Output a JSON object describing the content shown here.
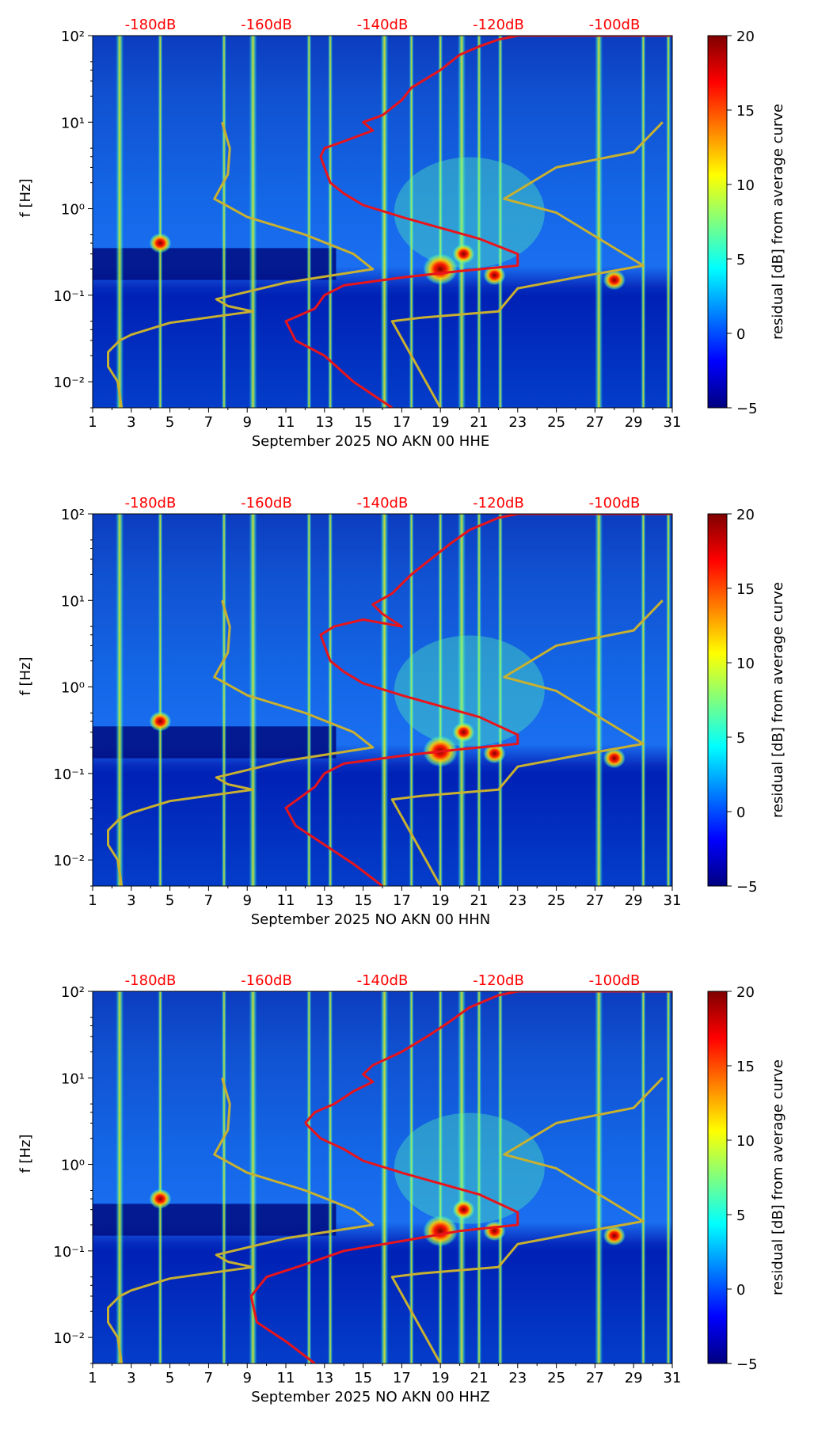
{
  "figure": {
    "colorbar": {
      "label": "residual [dB] from average curve",
      "ticks": [
        "20",
        "15",
        "10",
        "5",
        "0",
        "−5"
      ],
      "range": [
        -5,
        20
      ],
      "colormap": [
        "#00007f",
        "#0000ff",
        "#007fff",
        "#00ffff",
        "#7fff7f",
        "#ffff00",
        "#ff7f00",
        "#ff0000",
        "#7f0000"
      ]
    },
    "top_axis_labels": [
      "-180dB",
      "-160dB",
      "-140dB",
      "-120dB",
      "-100dB"
    ],
    "top_axis_color": "#ff0000"
  },
  "chart_data": [
    {
      "type": "heatmap",
      "title": "",
      "xlabel": "September 2025 NO AKN 00 HHE",
      "ylabel": "f [Hz]",
      "x_ticks": [
        "1",
        "3",
        "5",
        "7",
        "9",
        "11",
        "13",
        "15",
        "17",
        "19",
        "21",
        "23",
        "25",
        "27",
        "29",
        "31"
      ],
      "y_ticks": [
        "10²",
        "10¹",
        "10⁰",
        "10⁻¹",
        "10⁻²"
      ],
      "xlim": [
        1,
        31
      ],
      "ylim": [
        0.005,
        100
      ],
      "y_scale": "log",
      "top_axis_db": [
        -180,
        -160,
        -140,
        -120,
        -100
      ],
      "hotspots_day_freq": [
        [
          19.0,
          0.2
        ],
        [
          21.8,
          0.17
        ],
        [
          28.0,
          0.15
        ],
        [
          20.2,
          0.3
        ],
        [
          4.5,
          0.4
        ]
      ],
      "vertical_bands_day": [
        2.4,
        4.5,
        7.8,
        9.3,
        12.2,
        13.3,
        16.1,
        17.5,
        19.0,
        20.1,
        21.0,
        22.1,
        27.2,
        29.5,
        30.8
      ],
      "series": [
        {
          "name": "red",
          "points": [
            [
              13,
              3
            ],
            [
              12.8,
              4
            ],
            [
              13,
              5
            ],
            [
              14,
              6
            ],
            [
              15.5,
              8
            ],
            [
              15,
              10
            ],
            [
              16,
              12
            ],
            [
              17,
              18
            ],
            [
              17.5,
              25
            ],
            [
              19,
              40
            ],
            [
              20,
              60
            ],
            [
              21,
              75
            ],
            [
              22,
              90
            ],
            [
              23,
              100
            ],
            [
              31,
              100
            ]
          ]
        },
        {
          "name": "red",
          "points": [
            [
              13,
              3
            ],
            [
              13.3,
              2
            ],
            [
              14,
              1.5
            ],
            [
              15,
              1.1
            ],
            [
              17,
              0.8
            ],
            [
              19,
              0.6
            ],
            [
              21,
              0.45
            ],
            [
              23,
              0.3
            ],
            [
              23,
              0.22
            ],
            [
              20,
              0.19
            ],
            [
              17,
              0.16
            ],
            [
              14,
              0.13
            ],
            [
              13,
              0.1
            ],
            [
              12.5,
              0.07
            ],
            [
              11,
              0.05
            ],
            [
              11.5,
              0.03
            ],
            [
              13,
              0.02
            ],
            [
              14.5,
              0.01
            ],
            [
              16.5,
              0.005
            ]
          ]
        },
        {
          "name": "yellow",
          "points": [
            [
              7.7,
              10
            ],
            [
              8.1,
              5
            ],
            [
              8,
              2.5
            ],
            [
              7.3,
              1.3
            ],
            [
              9,
              0.8
            ],
            [
              12,
              0.5
            ],
            [
              14.5,
              0.3
            ],
            [
              15.5,
              0.2
            ],
            [
              11,
              0.14
            ],
            [
              7.4,
              0.09
            ],
            [
              8,
              0.075
            ],
            [
              9.3,
              0.065
            ],
            [
              5,
              0.048
            ],
            [
              3,
              0.035
            ],
            [
              2.4,
              0.03
            ],
            [
              1.8,
              0.022
            ],
            [
              1.8,
              0.015
            ],
            [
              2.3,
              0.01
            ],
            [
              2.5,
              0.005
            ]
          ]
        },
        {
          "name": "yellow",
          "points": [
            [
              30.5,
              10
            ],
            [
              29,
              4.5
            ],
            [
              25,
              3
            ],
            [
              22.3,
              1.3
            ],
            [
              25,
              0.9
            ],
            [
              29.5,
              0.22
            ],
            [
              26,
              0.16
            ],
            [
              23,
              0.12
            ],
            [
              22,
              0.065
            ],
            [
              18,
              0.055
            ],
            [
              16.5,
              0.05
            ],
            [
              19,
              0.005
            ]
          ]
        }
      ]
    },
    {
      "type": "heatmap",
      "title": "",
      "xlabel": "September 2025 NO AKN 00 HHN",
      "ylabel": "f [Hz]",
      "x_ticks": [
        "1",
        "3",
        "5",
        "7",
        "9",
        "11",
        "13",
        "15",
        "17",
        "19",
        "21",
        "23",
        "25",
        "27",
        "29",
        "31"
      ],
      "y_ticks": [
        "10²",
        "10¹",
        "10⁰",
        "10⁻¹",
        "10⁻²"
      ],
      "xlim": [
        1,
        31
      ],
      "ylim": [
        0.005,
        100
      ],
      "y_scale": "log",
      "top_axis_db": [
        -180,
        -160,
        -140,
        -120,
        -100
      ],
      "hotspots_day_freq": [
        [
          19.0,
          0.18
        ],
        [
          21.8,
          0.17
        ],
        [
          28.0,
          0.15
        ],
        [
          20.2,
          0.3
        ],
        [
          4.5,
          0.4
        ]
      ],
      "vertical_bands_day": [
        2.4,
        4.5,
        7.8,
        9.3,
        12.2,
        13.3,
        16.1,
        17.5,
        19.0,
        20.1,
        21.0,
        22.1,
        27.2,
        29.5,
        30.8
      ],
      "series": [
        {
          "name": "red",
          "points": [
            [
              13,
              3
            ],
            [
              12.8,
              4
            ],
            [
              13.5,
              5
            ],
            [
              15,
              6
            ],
            [
              17,
              5
            ],
            [
              16,
              7
            ],
            [
              15.5,
              9
            ],
            [
              16.5,
              12
            ],
            [
              17.5,
              20
            ],
            [
              18.5,
              30
            ],
            [
              19.5,
              45
            ],
            [
              20.5,
              65
            ],
            [
              22,
              90
            ],
            [
              23,
              100
            ],
            [
              31,
              100
            ]
          ]
        },
        {
          "name": "red",
          "points": [
            [
              13,
              3
            ],
            [
              13.3,
              2
            ],
            [
              14,
              1.5
            ],
            [
              15,
              1.1
            ],
            [
              17,
              0.8
            ],
            [
              19,
              0.6
            ],
            [
              21,
              0.45
            ],
            [
              23,
              0.28
            ],
            [
              23,
              0.22
            ],
            [
              20,
              0.19
            ],
            [
              17,
              0.16
            ],
            [
              14,
              0.13
            ],
            [
              13,
              0.1
            ],
            [
              12.5,
              0.07
            ],
            [
              11,
              0.04
            ],
            [
              11.5,
              0.025
            ],
            [
              13,
              0.015
            ],
            [
              14.5,
              0.009
            ],
            [
              16,
              0.005
            ]
          ]
        },
        {
          "name": "yellow",
          "points": [
            [
              7.7,
              10
            ],
            [
              8.1,
              5
            ],
            [
              8,
              2.5
            ],
            [
              7.3,
              1.3
            ],
            [
              9,
              0.8
            ],
            [
              12,
              0.5
            ],
            [
              14.5,
              0.3
            ],
            [
              15.5,
              0.2
            ],
            [
              11,
              0.14
            ],
            [
              7.4,
              0.09
            ],
            [
              8,
              0.075
            ],
            [
              9.3,
              0.065
            ],
            [
              5,
              0.048
            ],
            [
              3,
              0.035
            ],
            [
              2.4,
              0.03
            ],
            [
              1.8,
              0.022
            ],
            [
              1.8,
              0.015
            ],
            [
              2.3,
              0.01
            ],
            [
              2.5,
              0.005
            ]
          ]
        },
        {
          "name": "yellow",
          "points": [
            [
              30.5,
              10
            ],
            [
              29,
              4.5
            ],
            [
              25,
              3
            ],
            [
              22.3,
              1.3
            ],
            [
              25,
              0.9
            ],
            [
              29.5,
              0.22
            ],
            [
              26,
              0.16
            ],
            [
              23,
              0.12
            ],
            [
              22,
              0.065
            ],
            [
              18,
              0.055
            ],
            [
              16.5,
              0.05
            ],
            [
              19,
              0.005
            ]
          ]
        }
      ]
    },
    {
      "type": "heatmap",
      "title": "",
      "xlabel": "September 2025 NO AKN 00 HHZ",
      "ylabel": "f [Hz]",
      "x_ticks": [
        "1",
        "3",
        "5",
        "7",
        "9",
        "11",
        "13",
        "15",
        "17",
        "19",
        "21",
        "23",
        "25",
        "27",
        "29",
        "31"
      ],
      "y_ticks": [
        "10²",
        "10¹",
        "10⁰",
        "10⁻¹",
        "10⁻²"
      ],
      "xlim": [
        1,
        31
      ],
      "ylim": [
        0.005,
        100
      ],
      "y_scale": "log",
      "top_axis_db": [
        -180,
        -160,
        -140,
        -120,
        -100
      ],
      "hotspots_day_freq": [
        [
          19.0,
          0.17
        ],
        [
          21.8,
          0.17
        ],
        [
          28.0,
          0.15
        ],
        [
          20.2,
          0.3
        ],
        [
          4.5,
          0.4
        ]
      ],
      "vertical_bands_day": [
        2.4,
        4.5,
        7.8,
        9.3,
        12.2,
        13.3,
        16.1,
        17.5,
        19.0,
        20.1,
        21.0,
        22.1,
        27.2,
        29.5,
        30.8
      ],
      "series": [
        {
          "name": "red",
          "points": [
            [
              12,
              3
            ],
            [
              12.5,
              4
            ],
            [
              13.5,
              5
            ],
            [
              14.5,
              7
            ],
            [
              15.5,
              9
            ],
            [
              15,
              11
            ],
            [
              15.5,
              14
            ],
            [
              17,
              20
            ],
            [
              18.5,
              32
            ],
            [
              19.5,
              45
            ],
            [
              20.5,
              65
            ],
            [
              22,
              90
            ],
            [
              23,
              100
            ],
            [
              31,
              100
            ]
          ]
        },
        {
          "name": "red",
          "points": [
            [
              12,
              3
            ],
            [
              12.8,
              2
            ],
            [
              14,
              1.5
            ],
            [
              15,
              1.1
            ],
            [
              17,
              0.8
            ],
            [
              19,
              0.6
            ],
            [
              21,
              0.45
            ],
            [
              23,
              0.28
            ],
            [
              23,
              0.2
            ],
            [
              20,
              0.17
            ],
            [
              17,
              0.13
            ],
            [
              14,
              0.1
            ],
            [
              12,
              0.07
            ],
            [
              10,
              0.05
            ],
            [
              9.2,
              0.03
            ],
            [
              9.5,
              0.015
            ],
            [
              11,
              0.009
            ],
            [
              12.5,
              0.005
            ]
          ]
        },
        {
          "name": "yellow",
          "points": [
            [
              7.7,
              10
            ],
            [
              8.1,
              5
            ],
            [
              8,
              2.5
            ],
            [
              7.3,
              1.3
            ],
            [
              9,
              0.8
            ],
            [
              12,
              0.5
            ],
            [
              14.5,
              0.3
            ],
            [
              15.5,
              0.2
            ],
            [
              11,
              0.14
            ],
            [
              7.4,
              0.09
            ],
            [
              8,
              0.075
            ],
            [
              9.3,
              0.065
            ],
            [
              5,
              0.048
            ],
            [
              3,
              0.035
            ],
            [
              2.4,
              0.03
            ],
            [
              1.8,
              0.022
            ],
            [
              1.8,
              0.015
            ],
            [
              2.3,
              0.01
            ],
            [
              2.5,
              0.005
            ]
          ]
        },
        {
          "name": "yellow",
          "points": [
            [
              30.5,
              10
            ],
            [
              29,
              4.5
            ],
            [
              25,
              3
            ],
            [
              22.3,
              1.3
            ],
            [
              25,
              0.9
            ],
            [
              29.5,
              0.22
            ],
            [
              26,
              0.16
            ],
            [
              23,
              0.12
            ],
            [
              22,
              0.065
            ],
            [
              18,
              0.055
            ],
            [
              16.5,
              0.05
            ],
            [
              19,
              0.005
            ]
          ]
        }
      ]
    }
  ]
}
